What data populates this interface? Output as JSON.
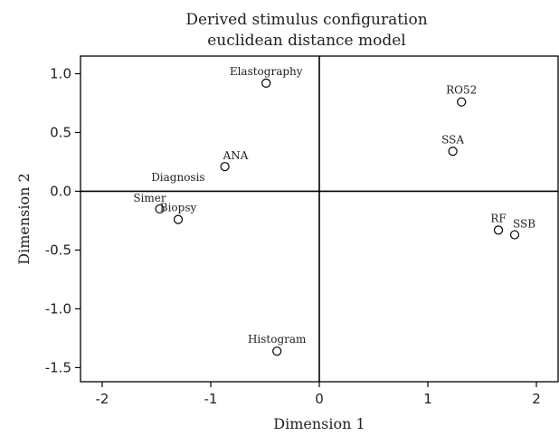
{
  "chart_data": {
    "type": "scatter",
    "title": "Derived stimulus configuration",
    "subtitle": "euclidean distance model",
    "xlabel": "Dimension 1",
    "ylabel": "Dimension 2",
    "xlim": [
      -2.2,
      2.2
    ],
    "ylim": [
      -1.62,
      1.15
    ],
    "xticks": [
      -2,
      -1,
      0,
      1,
      2
    ],
    "xtick_labels": [
      "-2",
      "-1",
      "0",
      "1",
      "2"
    ],
    "yticks": [
      1.0,
      0.5,
      0.0,
      -0.5,
      -1.0,
      -1.5
    ],
    "ytick_labels": [
      "1.0",
      "0.5",
      "0.0",
      "-0.5",
      "-1.0",
      "-1.5"
    ],
    "reference_lines": {
      "x": 0,
      "y": 0
    },
    "grid": false,
    "points": [
      {
        "label": "Elastography",
        "x": -0.49,
        "y": 0.92,
        "label_pos": "above"
      },
      {
        "label": "ANA",
        "x": -0.87,
        "y": 0.21,
        "label_pos": "above-right"
      },
      {
        "label": "Diagnosis",
        "x": -0.87,
        "y": 0.21,
        "label_pos": "below-left"
      },
      {
        "label": "Simer",
        "x": -1.47,
        "y": -0.15,
        "label_pos": "above-left"
      },
      {
        "label": "Biopsy",
        "x": -1.3,
        "y": -0.24,
        "label_pos": "above"
      },
      {
        "label": "Histogram",
        "x": -0.39,
        "y": -1.36,
        "label_pos": "above"
      },
      {
        "label": "RO52",
        "x": 1.31,
        "y": 0.76,
        "label_pos": "above"
      },
      {
        "label": "SSA",
        "x": 1.23,
        "y": 0.34,
        "label_pos": "above"
      },
      {
        "label": "RF",
        "x": 1.65,
        "y": -0.33,
        "label_pos": "above"
      },
      {
        "label": "SSB",
        "x": 1.8,
        "y": -0.37,
        "label_pos": "above-right"
      }
    ]
  }
}
